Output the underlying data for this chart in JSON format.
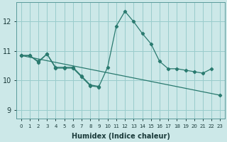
{
  "color": "#2a7a6f",
  "bg_color": "#cce8e8",
  "grid_color": "#99cccc",
  "xlabel": "Humidex (Indice chaleur)",
  "ylim": [
    8.7,
    12.65
  ],
  "xlim": [
    -0.5,
    23.5
  ],
  "yticks": [
    9,
    10,
    11,
    12
  ],
  "xtick_labels": [
    "0",
    "1",
    "2",
    "3",
    "4",
    "5",
    "6",
    "7",
    "8",
    "9",
    "10",
    "11",
    "12",
    "13",
    "14",
    "15",
    "16",
    "17",
    "18",
    "19",
    "20",
    "21",
    "22",
    "23"
  ],
  "line_main_x": [
    0,
    1,
    2,
    3,
    4,
    5,
    6,
    7,
    8,
    9,
    10,
    11,
    12,
    13,
    14,
    15,
    16,
    17,
    18,
    19,
    20,
    21,
    22
  ],
  "line_main_y": [
    10.85,
    10.85,
    10.65,
    10.9,
    10.45,
    10.45,
    10.45,
    10.15,
    9.85,
    9.8,
    10.45,
    11.85,
    12.35,
    12.0,
    11.6,
    11.25,
    10.65,
    10.4,
    10.4,
    10.35,
    10.3,
    10.25,
    10.4
  ],
  "line_short_x": [
    0,
    1,
    2,
    3,
    4,
    5,
    6,
    7,
    8,
    9
  ],
  "line_short_y": [
    10.85,
    10.85,
    10.62,
    10.9,
    10.42,
    10.42,
    10.42,
    10.12,
    9.82,
    9.78
  ],
  "line_trend_x": [
    0,
    23
  ],
  "line_trend_y": [
    10.85,
    9.5
  ]
}
